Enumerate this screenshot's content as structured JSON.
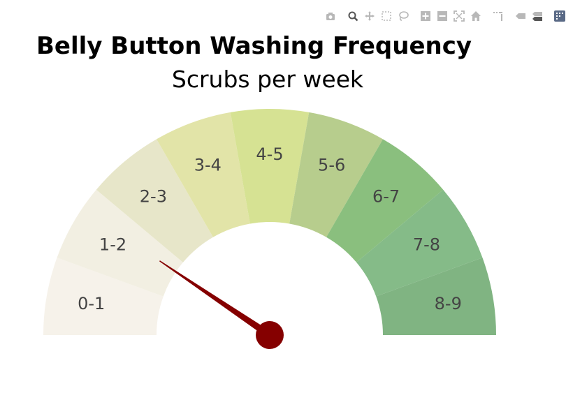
{
  "title": "Belly Button Washing Frequency",
  "subtitle": "Scrubs per week",
  "modebar": [
    {
      "icon": "camera-icon",
      "name": "download-plot-button"
    },
    {
      "icon": "zoom-icon",
      "name": "zoom-button"
    },
    {
      "icon": "pan-icon",
      "name": "pan-button"
    },
    {
      "icon": "box-select-icon",
      "name": "box-select-button"
    },
    {
      "icon": "lasso-icon",
      "name": "lasso-select-button"
    },
    {
      "icon": "zoom-in-icon",
      "name": "zoom-in-button"
    },
    {
      "icon": "zoom-out-icon",
      "name": "zoom-out-button"
    },
    {
      "icon": "autoscale-icon",
      "name": "autoscale-button"
    },
    {
      "icon": "home-icon",
      "name": "reset-axes-button"
    },
    {
      "icon": "spike-lines-icon",
      "name": "spike-lines-button"
    },
    {
      "icon": "hover-closest-icon",
      "name": "hover-closest-button"
    },
    {
      "icon": "hover-compare-icon",
      "name": "hover-compare-button"
    },
    {
      "icon": "plotly-logo-icon",
      "name": "plotly-logo-link"
    }
  ],
  "chart_data": {
    "type": "gauge",
    "range": [
      0,
      9
    ],
    "segments": [
      {
        "label": "0-1",
        "color": "#f6f2ea"
      },
      {
        "label": "1-2",
        "color": "#f2efe2"
      },
      {
        "label": "2-3",
        "color": "#e7e6c9"
      },
      {
        "label": "3-4",
        "color": "#e2e4a8"
      },
      {
        "label": "4-5",
        "color": "#d6e293"
      },
      {
        "label": "5-6",
        "color": "#b7cd8d"
      },
      {
        "label": "6-7",
        "color": "#8abf7e"
      },
      {
        "label": "7-8",
        "color": "#85bb88"
      },
      {
        "label": "8-9",
        "color": "#80b482"
      }
    ],
    "needle_value": 1.7,
    "needle_color": "#850000"
  }
}
